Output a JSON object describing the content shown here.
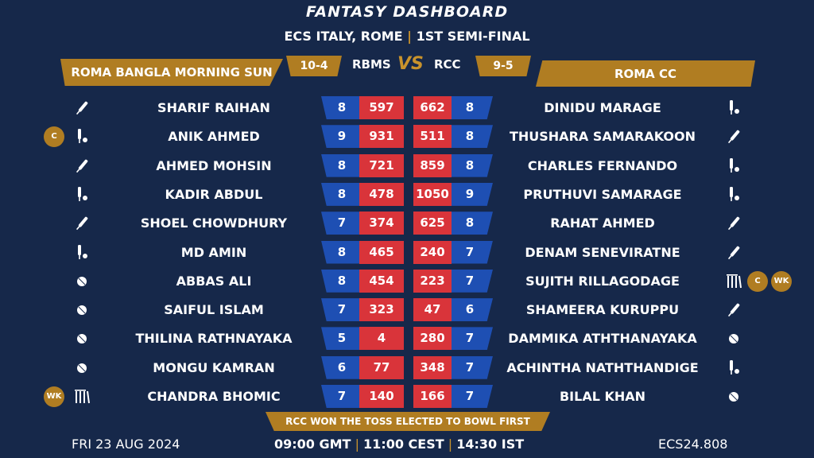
{
  "header": {
    "title": "FANTASY DASHBOARD",
    "event": "ECS ITALY, ROME",
    "separator": "|",
    "stage": "1ST SEMI-FINAL"
  },
  "teams": {
    "left": {
      "name": "ROMA BANGLA MORNING SUN",
      "abbr": "RBMS",
      "record": "10-4"
    },
    "right": {
      "name": "ROMA CC",
      "abbr": "RCC",
      "record": "9-5"
    },
    "vs": "VS"
  },
  "colors": {
    "gold": "#b07d22",
    "blue": "#1e4fb3",
    "red": "#d9343a",
    "background": "#16284a"
  },
  "rows": [
    {
      "left": {
        "name": "SHARIF RAIHAN",
        "role": "bat",
        "matches": "8",
        "points": "597",
        "badges": []
      },
      "right": {
        "name": "DINIDU MARAGE",
        "role": "allround",
        "matches": "8",
        "points": "662",
        "badges": []
      }
    },
    {
      "left": {
        "name": "ANIK AHMED",
        "role": "allround",
        "matches": "9",
        "points": "931",
        "badges": [
          "C"
        ]
      },
      "right": {
        "name": "THUSHARA SAMARAKOON",
        "role": "bat",
        "matches": "8",
        "points": "511",
        "badges": []
      }
    },
    {
      "left": {
        "name": "AHMED MOHSIN",
        "role": "bat",
        "matches": "8",
        "points": "721",
        "badges": []
      },
      "right": {
        "name": "CHARLES FERNANDO",
        "role": "allround",
        "matches": "8",
        "points": "859",
        "badges": []
      }
    },
    {
      "left": {
        "name": "KADIR ABDUL",
        "role": "allround",
        "matches": "8",
        "points": "478",
        "badges": []
      },
      "right": {
        "name": "PRUTHUVI SAMARAGE",
        "role": "allround",
        "matches": "9",
        "points": "1050",
        "badges": []
      }
    },
    {
      "left": {
        "name": "SHOEL CHOWDHURY",
        "role": "bat",
        "matches": "7",
        "points": "374",
        "badges": []
      },
      "right": {
        "name": "RAHAT AHMED",
        "role": "bat",
        "matches": "8",
        "points": "625",
        "badges": []
      }
    },
    {
      "left": {
        "name": "MD AMIN",
        "role": "allround",
        "matches": "8",
        "points": "465",
        "badges": []
      },
      "right": {
        "name": "DENAM SENEVIRATNE",
        "role": "bat",
        "matches": "7",
        "points": "240",
        "badges": []
      }
    },
    {
      "left": {
        "name": "ABBAS ALI",
        "role": "bowl",
        "matches": "8",
        "points": "454",
        "badges": []
      },
      "right": {
        "name": "SUJITH RILLAGODAGE",
        "role": "wk",
        "matches": "7",
        "points": "223",
        "badges": [
          "C",
          "WK"
        ]
      }
    },
    {
      "left": {
        "name": "SAIFUL ISLAM",
        "role": "bowl",
        "matches": "7",
        "points": "323",
        "badges": []
      },
      "right": {
        "name": "SHAMEERA KURUPPU",
        "role": "bat",
        "matches": "6",
        "points": "47",
        "badges": []
      }
    },
    {
      "left": {
        "name": "THILINA RATHNAYAKA",
        "role": "bowl",
        "matches": "5",
        "points": "4",
        "badges": []
      },
      "right": {
        "name": "DAMMIKA ATHTHANAYAKA",
        "role": "bowl",
        "matches": "7",
        "points": "280",
        "badges": []
      }
    },
    {
      "left": {
        "name": "MONGU KAMRAN",
        "role": "bowl",
        "matches": "6",
        "points": "77",
        "badges": []
      },
      "right": {
        "name": "ACHINTHA NATHTHANDIGE",
        "role": "allround",
        "matches": "7",
        "points": "348",
        "badges": []
      }
    },
    {
      "left": {
        "name": "CHANDRA BHOMIC",
        "role": "wk",
        "matches": "7",
        "points": "140",
        "badges": [
          "WK"
        ]
      },
      "right": {
        "name": "BILAL KHAN",
        "role": "bowl",
        "matches": "7",
        "points": "166",
        "badges": []
      }
    }
  ],
  "toss": "RCC WON THE TOSS ELECTED TO BOWL FIRST",
  "footer": {
    "date": "FRI 23 AUG 2024",
    "time_gmt": "09:00 GMT",
    "time_cest": "11:00 CEST",
    "time_ist": "14:30 IST",
    "separator": "|",
    "code": "ECS24.808"
  }
}
